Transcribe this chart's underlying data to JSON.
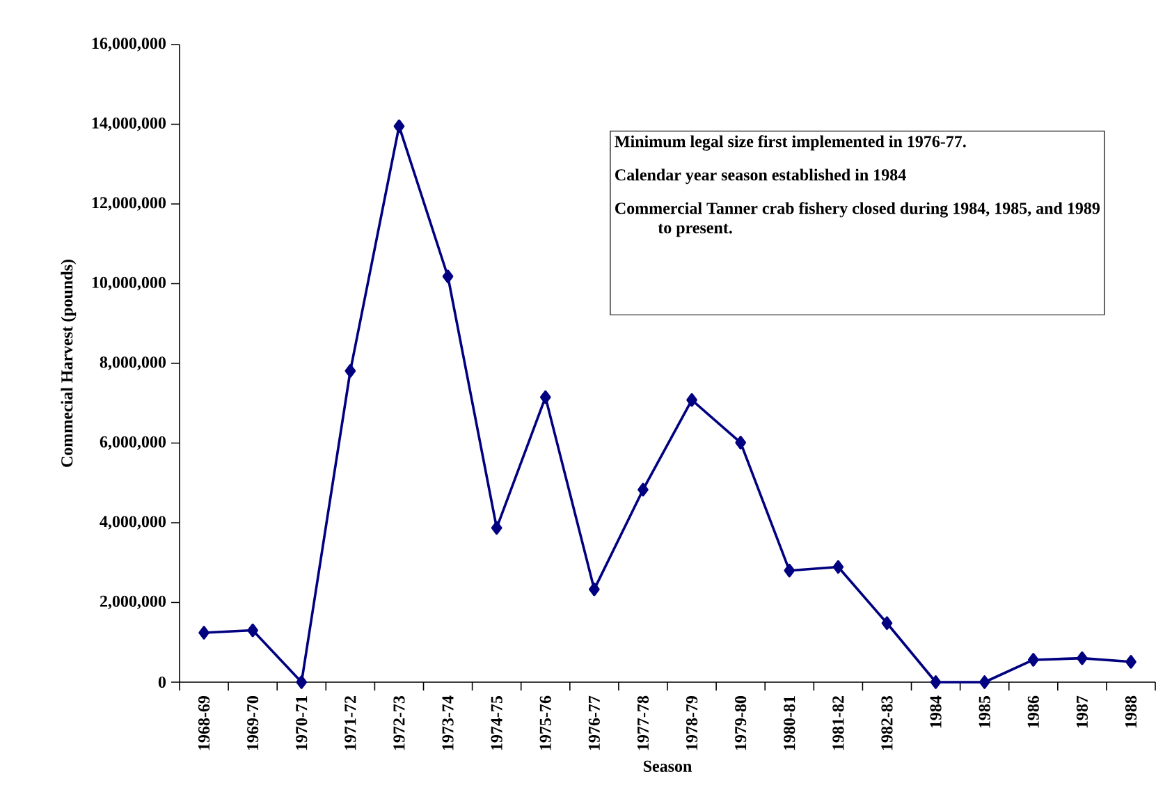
{
  "chart_data": {
    "type": "line",
    "xlabel": "Season",
    "ylabel": "Commecial Harvest (pounds)",
    "categories": [
      "1968-69",
      "1969-70",
      "1970-71",
      "1971-72",
      "1972-73",
      "1973-74",
      "1974-75",
      "1975-76",
      "1976-77",
      "1977-78",
      "1978-79",
      "1979-80",
      "1980-81",
      "1981-82",
      "1982-83",
      "1984",
      "1985",
      "1986",
      "1987",
      "1988"
    ],
    "values": [
      1240000,
      1300000,
      0,
      7810000,
      13950000,
      10180000,
      3870000,
      7150000,
      2330000,
      4830000,
      7080000,
      6010000,
      2800000,
      2890000,
      1480000,
      0,
      0,
      560000,
      600000,
      510000
    ],
    "color": "#000080",
    "marker": "diamond",
    "line_style": "solid",
    "ylim": [
      0,
      16000000
    ],
    "yticks": [
      0,
      {
        "value": 2000000,
        "label": "2,000,000"
      },
      {
        "value": 4000000,
        "label": "4,000,000"
      },
      {
        "value": 6000000,
        "label": "6,000,000"
      },
      {
        "value": 8000000,
        "label": "8,000,000"
      },
      {
        "value": 10000000,
        "label": "10,000,000"
      },
      {
        "value": 12000000,
        "label": "12,000,000"
      },
      {
        "value": 14000000,
        "label": "14,000,000"
      },
      {
        "value": 16000000,
        "label": "16,000,000"
      }
    ],
    "annotations": [
      "Minimum legal size first implemented in 1976-77.",
      "Calendar year season established in 1984",
      "Commercial Tanner crab fishery closed during 1984, 1985, and 1989 to present."
    ]
  }
}
